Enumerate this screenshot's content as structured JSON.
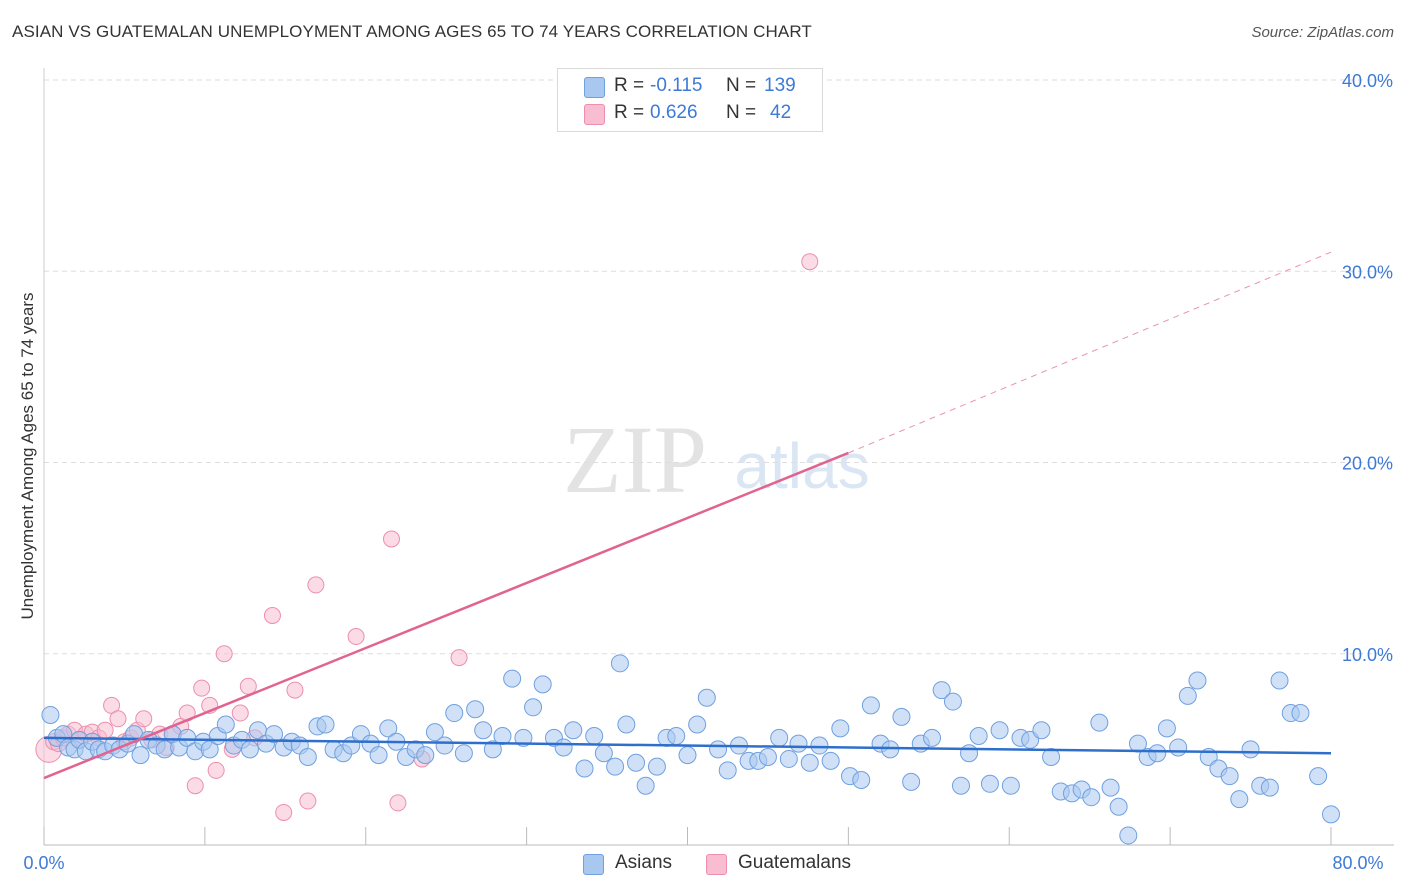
{
  "header": {
    "title": "ASIAN VS GUATEMALAN UNEMPLOYMENT AMONG AGES 65 TO 74 YEARS CORRELATION CHART",
    "source": "Source: ZipAtlas.com"
  },
  "watermark": {
    "zip": "ZIP",
    "atlas": "atlas"
  },
  "legend_top": [
    {
      "r_label": "R =",
      "r_value": "-0.115",
      "n_label": "N =",
      "n_value": "139"
    },
    {
      "r_label": "R =",
      "r_value": "0.626",
      "n_label": "N =",
      "n_value": "42"
    }
  ],
  "legend_bottom": [
    {
      "label": "Asians"
    },
    {
      "label": "Guatemalans"
    }
  ],
  "colors": {
    "asian_fill": "#a9c8f0",
    "asian_stroke": "#6fa0e0",
    "asian_line": "#2f6fcc",
    "guat_fill": "#f8bdd0",
    "guat_stroke": "#ec8fae",
    "guat_line": "#e0648f",
    "axis_text": "#3d7ad6",
    "grid": "#dddddd"
  },
  "chart_data": {
    "type": "scatter",
    "title": "ASIAN VS GUATEMALAN UNEMPLOYMENT AMONG AGES 65 TO 74 YEARS CORRELATION CHART",
    "xlabel": "",
    "ylabel": "Unemployment Among Ages 65 to 74 years",
    "xlim": [
      0,
      80
    ],
    "ylim": [
      0,
      40
    ],
    "x_tick_labels": [
      "0.0%",
      "80.0%"
    ],
    "y_ticks": [
      10,
      20,
      30,
      40
    ],
    "y_tick_labels": [
      "10.0%",
      "20.0%",
      "30.0%",
      "40.0%"
    ],
    "grid": true,
    "series": [
      {
        "name": "Asians",
        "R": -0.115,
        "N": 139,
        "trend": {
          "x": [
            0,
            80
          ],
          "y": [
            5.6,
            4.8
          ],
          "dashed_extension": false
        },
        "points": [
          [
            0.4,
            6.8
          ],
          [
            0.8,
            5.6
          ],
          [
            1.2,
            5.8
          ],
          [
            1.5,
            5.1
          ],
          [
            1.9,
            5.0
          ],
          [
            2.2,
            5.5
          ],
          [
            2.6,
            4.9
          ],
          [
            3.0,
            5.4
          ],
          [
            3.4,
            5.0
          ],
          [
            3.8,
            4.9
          ],
          [
            4.3,
            5.2
          ],
          [
            4.7,
            5.0
          ],
          [
            5.2,
            5.3
          ],
          [
            5.6,
            5.8
          ],
          [
            6.0,
            4.7
          ],
          [
            6.5,
            5.5
          ],
          [
            7.0,
            5.2
          ],
          [
            7.5,
            5.0
          ],
          [
            8.0,
            5.8
          ],
          [
            8.4,
            5.1
          ],
          [
            8.9,
            5.6
          ],
          [
            9.4,
            4.9
          ],
          [
            9.9,
            5.4
          ],
          [
            10.3,
            5.0
          ],
          [
            10.8,
            5.7
          ],
          [
            11.3,
            6.3
          ],
          [
            11.8,
            5.2
          ],
          [
            12.3,
            5.5
          ],
          [
            12.8,
            5.0
          ],
          [
            13.3,
            6.0
          ],
          [
            13.8,
            5.3
          ],
          [
            14.3,
            5.8
          ],
          [
            14.9,
            5.1
          ],
          [
            15.4,
            5.4
          ],
          [
            15.9,
            5.2
          ],
          [
            16.4,
            4.6
          ],
          [
            17.0,
            6.2
          ],
          [
            17.5,
            6.3
          ],
          [
            18.0,
            5.0
          ],
          [
            18.6,
            4.8
          ],
          [
            19.1,
            5.2
          ],
          [
            19.7,
            5.8
          ],
          [
            20.3,
            5.3
          ],
          [
            20.8,
            4.7
          ],
          [
            21.4,
            6.1
          ],
          [
            21.9,
            5.4
          ],
          [
            22.5,
            4.6
          ],
          [
            23.1,
            5.0
          ],
          [
            23.7,
            4.7
          ],
          [
            24.3,
            5.9
          ],
          [
            24.9,
            5.2
          ],
          [
            25.5,
            6.9
          ],
          [
            26.1,
            4.8
          ],
          [
            26.8,
            7.1
          ],
          [
            27.3,
            6.0
          ],
          [
            27.9,
            5.0
          ],
          [
            28.5,
            5.7
          ],
          [
            29.1,
            8.7
          ],
          [
            29.8,
            5.6
          ],
          [
            30.4,
            7.2
          ],
          [
            31.0,
            8.4
          ],
          [
            31.7,
            5.6
          ],
          [
            32.3,
            5.1
          ],
          [
            32.9,
            6.0
          ],
          [
            33.6,
            4.0
          ],
          [
            34.2,
            5.7
          ],
          [
            34.8,
            4.8
          ],
          [
            35.5,
            4.1
          ],
          [
            35.8,
            9.5
          ],
          [
            36.2,
            6.3
          ],
          [
            36.8,
            4.3
          ],
          [
            37.4,
            3.1
          ],
          [
            38.1,
            4.1
          ],
          [
            38.7,
            5.6
          ],
          [
            39.3,
            5.7
          ],
          [
            40.0,
            4.7
          ],
          [
            40.6,
            6.3
          ],
          [
            41.2,
            7.7
          ],
          [
            41.9,
            5.0
          ],
          [
            42.5,
            3.9
          ],
          [
            43.2,
            5.2
          ],
          [
            43.8,
            4.4
          ],
          [
            44.4,
            4.4
          ],
          [
            45.0,
            4.6
          ],
          [
            45.7,
            5.6
          ],
          [
            46.3,
            4.5
          ],
          [
            46.9,
            5.3
          ],
          [
            47.6,
            4.3
          ],
          [
            48.2,
            5.2
          ],
          [
            48.9,
            4.4
          ],
          [
            49.5,
            6.1
          ],
          [
            50.1,
            3.6
          ],
          [
            50.8,
            3.4
          ],
          [
            51.4,
            7.3
          ],
          [
            52.0,
            5.3
          ],
          [
            52.6,
            5.0
          ],
          [
            53.3,
            6.7
          ],
          [
            53.9,
            3.3
          ],
          [
            54.5,
            5.3
          ],
          [
            55.2,
            5.6
          ],
          [
            55.8,
            8.1
          ],
          [
            56.5,
            7.5
          ],
          [
            57.0,
            3.1
          ],
          [
            57.5,
            4.8
          ],
          [
            58.1,
            5.7
          ],
          [
            58.8,
            3.2
          ],
          [
            59.4,
            6.0
          ],
          [
            60.1,
            3.1
          ],
          [
            60.7,
            5.6
          ],
          [
            61.3,
            5.5
          ],
          [
            62.0,
            6.0
          ],
          [
            62.6,
            4.6
          ],
          [
            63.2,
            2.8
          ],
          [
            63.9,
            2.7
          ],
          [
            64.5,
            2.9
          ],
          [
            65.1,
            2.5
          ],
          [
            65.6,
            6.4
          ],
          [
            66.3,
            3.0
          ],
          [
            66.8,
            2.0
          ],
          [
            67.4,
            0.5
          ],
          [
            68.0,
            5.3
          ],
          [
            68.6,
            4.6
          ],
          [
            69.2,
            4.8
          ],
          [
            69.8,
            6.1
          ],
          [
            70.5,
            5.1
          ],
          [
            71.1,
            7.8
          ],
          [
            71.7,
            8.6
          ],
          [
            72.4,
            4.6
          ],
          [
            73.0,
            4.0
          ],
          [
            73.7,
            3.6
          ],
          [
            74.3,
            2.4
          ],
          [
            75.0,
            5.0
          ],
          [
            75.6,
            3.1
          ],
          [
            76.2,
            3.0
          ],
          [
            76.8,
            8.6
          ],
          [
            77.5,
            6.9
          ],
          [
            78.1,
            6.9
          ],
          [
            79.2,
            3.6
          ],
          [
            80.0,
            1.6
          ]
        ]
      },
      {
        "name": "Guatemalans",
        "R": 0.626,
        "N": 42,
        "trend": {
          "x": [
            0,
            50
          ],
          "y": [
            3.5,
            20.5
          ],
          "dashed_extension_to": [
            80,
            31.0
          ]
        },
        "points": [
          [
            0.3,
            5.0
          ],
          [
            0.6,
            5.4
          ],
          [
            0.9,
            5.3
          ],
          [
            1.2,
            5.6
          ],
          [
            1.5,
            5.8
          ],
          [
            1.9,
            6.0
          ],
          [
            2.2,
            5.5
          ],
          [
            2.6,
            5.8
          ],
          [
            3.0,
            5.9
          ],
          [
            3.4,
            5.6
          ],
          [
            3.8,
            6.0
          ],
          [
            4.2,
            7.3
          ],
          [
            4.6,
            6.6
          ],
          [
            5.0,
            5.4
          ],
          [
            5.4,
            5.6
          ],
          [
            5.8,
            6.0
          ],
          [
            6.2,
            6.6
          ],
          [
            6.7,
            5.5
          ],
          [
            7.2,
            5.8
          ],
          [
            7.6,
            5.1
          ],
          [
            8.0,
            5.8
          ],
          [
            8.5,
            6.2
          ],
          [
            8.9,
            6.9
          ],
          [
            9.4,
            3.1
          ],
          [
            9.8,
            8.2
          ],
          [
            10.3,
            7.3
          ],
          [
            10.7,
            3.9
          ],
          [
            11.2,
            10.0
          ],
          [
            11.7,
            5.0
          ],
          [
            12.2,
            6.9
          ],
          [
            12.7,
            8.3
          ],
          [
            13.1,
            5.6
          ],
          [
            14.2,
            12.0
          ],
          [
            14.9,
            1.7
          ],
          [
            15.6,
            8.1
          ],
          [
            16.4,
            2.3
          ],
          [
            16.9,
            13.6
          ],
          [
            19.4,
            10.9
          ],
          [
            21.6,
            16.0
          ],
          [
            22.0,
            2.2
          ],
          [
            23.5,
            4.5
          ],
          [
            25.8,
            9.8
          ],
          [
            47.6,
            30.5
          ]
        ]
      }
    ]
  }
}
